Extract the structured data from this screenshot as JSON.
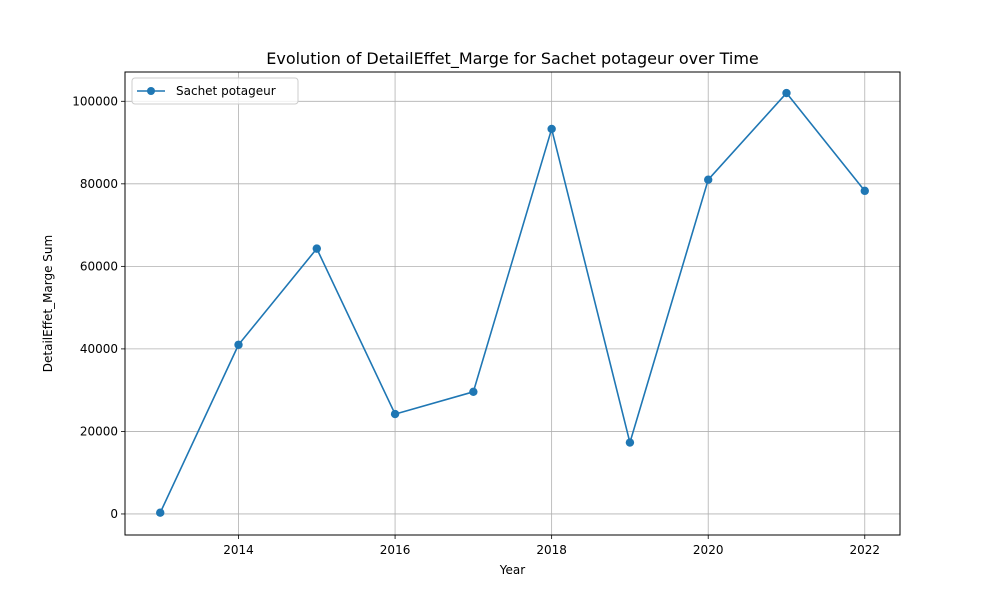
{
  "chart_data": {
    "type": "line",
    "title": "Evolution of DetailEffet_Marge for Sachet potageur over Time",
    "xlabel": "Year",
    "ylabel": "DetailEffet_Marge Sum",
    "x": [
      2013,
      2014,
      2015,
      2016,
      2017,
      2018,
      2019,
      2020,
      2021,
      2022
    ],
    "series": [
      {
        "name": "Sachet potageur",
        "values": [
          300,
          41000,
          64300,
          24200,
          29600,
          93300,
          17300,
          81000,
          102000,
          78300
        ],
        "color": "#1f77b4"
      }
    ],
    "xlim": [
      2012.55,
      2022.45
    ],
    "ylim": [
      -5100,
      107100
    ],
    "xticks": [
      2014,
      2016,
      2018,
      2020,
      2022
    ],
    "yticks": [
      0,
      20000,
      40000,
      60000,
      80000,
      100000
    ],
    "grid": true,
    "legend_position": "upper-left"
  }
}
